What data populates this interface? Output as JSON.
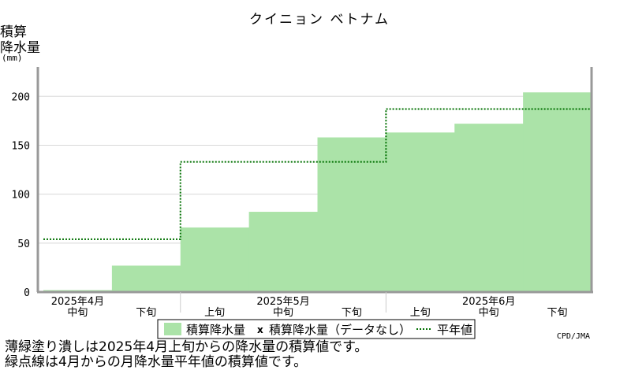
{
  "chart_data": {
    "type": "bar",
    "title": "クイニョン ベトナム",
    "ylabel_lines": [
      "積算",
      "降水量",
      "(mm)"
    ],
    "yticks": [
      0,
      50,
      100,
      150,
      200
    ],
    "ylim": [
      0,
      230
    ],
    "categories": [
      "中旬",
      "下旬",
      "上旬",
      "中旬",
      "下旬",
      "上旬",
      "中旬",
      "下旬"
    ],
    "month_labels": [
      {
        "label": "2025年4月",
        "index": 0
      },
      {
        "label": "2025年5月",
        "index": 3
      },
      {
        "label": "2025年6月",
        "index": 6
      }
    ],
    "series": [
      {
        "name": "積算降水量",
        "values": [
          2,
          27,
          66,
          82,
          158,
          163,
          172,
          204
        ]
      },
      {
        "name": "平年値",
        "values": [
          54,
          54,
          133,
          133,
          133,
          187,
          187,
          187
        ]
      }
    ],
    "legend": {
      "accum": "積算降水量",
      "missing": "積算降水量（データなし）",
      "normal": "平年値"
    },
    "colors": {
      "bar": "#abe3a8",
      "normal_line": "#007000",
      "grid": "#d8d8d8",
      "axis": "#999999"
    },
    "grid": true,
    "credit": "CPD/JMA"
  },
  "footnotes": [
    "薄緑塗り潰しは2025年4月上旬からの降水量の積算値です。",
    "緑点線は4月からの月降水量平年値の積算値です。"
  ]
}
